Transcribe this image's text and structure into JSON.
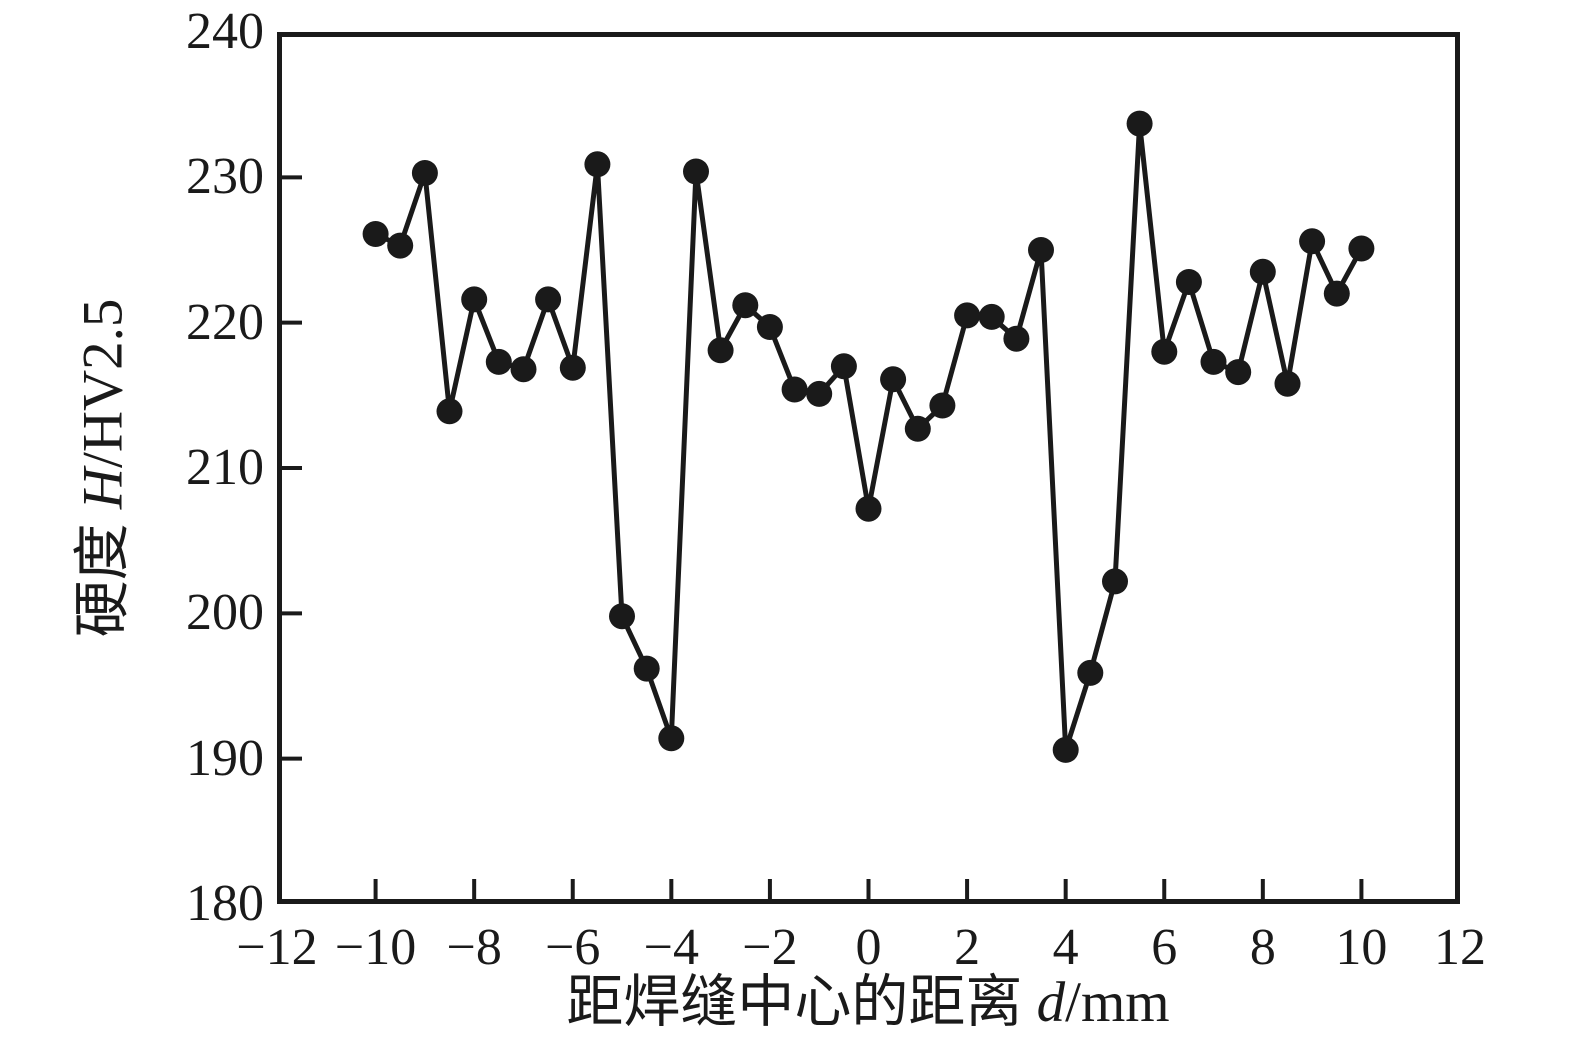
{
  "chart_data": {
    "type": "line",
    "title": "",
    "xlabel_prefix": "距焊缝中心的距离 ",
    "xlabel_symbol": "d",
    "xlabel_suffix": "/mm",
    "ylabel_prefix": "硬度 ",
    "ylabel_symbol": "H",
    "ylabel_suffix": "/HV2.5",
    "xlim": [
      -12,
      12
    ],
    "ylim": [
      180,
      240
    ],
    "grid": false,
    "legend_position": "none",
    "marker": "filled-circle",
    "line_color": "#1a1a1a",
    "axis_color": "#1a1a1a",
    "x_ticks": [
      {
        "value": -12,
        "label": "−12"
      },
      {
        "value": -10,
        "label": "−10"
      },
      {
        "value": -8,
        "label": "−8"
      },
      {
        "value": -6,
        "label": "−6"
      },
      {
        "value": -4,
        "label": "−4"
      },
      {
        "value": -2,
        "label": "−2"
      },
      {
        "value": 0,
        "label": "0"
      },
      {
        "value": 2,
        "label": "2"
      },
      {
        "value": 4,
        "label": "4"
      },
      {
        "value": 6,
        "label": "6"
      },
      {
        "value": 8,
        "label": "8"
      },
      {
        "value": 10,
        "label": "10"
      },
      {
        "value": 12,
        "label": "12"
      }
    ],
    "y_ticks": [
      {
        "value": 240,
        "label": "240"
      },
      {
        "value": 230,
        "label": "230"
      },
      {
        "value": 220,
        "label": "220"
      },
      {
        "value": 210,
        "label": "210"
      },
      {
        "value": 200,
        "label": "200"
      },
      {
        "value": 190,
        "label": "190"
      },
      {
        "value": 180,
        "label": "180"
      }
    ],
    "series": [
      {
        "name": "hardness-profile",
        "points": [
          [
            -10,
            226.1
          ],
          [
            -9.5,
            225.3
          ],
          [
            -9,
            230.3
          ],
          [
            -8.5,
            213.9
          ],
          [
            -8,
            221.6
          ],
          [
            -7.5,
            217.3
          ],
          [
            -7,
            216.8
          ],
          [
            -6.5,
            221.6
          ],
          [
            -6,
            216.9
          ],
          [
            -5.5,
            230.9
          ],
          [
            -5,
            199.8
          ],
          [
            -4.5,
            196.2
          ],
          [
            -4,
            191.4
          ],
          [
            -3.5,
            230.4
          ],
          [
            -3,
            218.1
          ],
          [
            -2.5,
            221.2
          ],
          [
            -2,
            219.7
          ],
          [
            -1.5,
            215.4
          ],
          [
            -1,
            215.1
          ],
          [
            -0.5,
            217.0
          ],
          [
            0,
            207.2
          ],
          [
            0.5,
            216.1
          ],
          [
            1,
            212.7
          ],
          [
            1.5,
            214.3
          ],
          [
            2,
            220.5
          ],
          [
            2.5,
            220.4
          ],
          [
            3,
            218.9
          ],
          [
            3.5,
            225.0
          ],
          [
            4,
            190.6
          ],
          [
            4.5,
            195.9
          ],
          [
            5,
            202.2
          ],
          [
            5.5,
            233.7
          ],
          [
            6,
            218.0
          ],
          [
            6.5,
            222.8
          ],
          [
            7,
            217.3
          ],
          [
            7.5,
            216.6
          ],
          [
            8,
            223.5
          ],
          [
            8.5,
            215.8
          ],
          [
            9,
            225.6
          ],
          [
            9.5,
            222.0
          ],
          [
            10,
            225.1
          ]
        ]
      }
    ]
  }
}
